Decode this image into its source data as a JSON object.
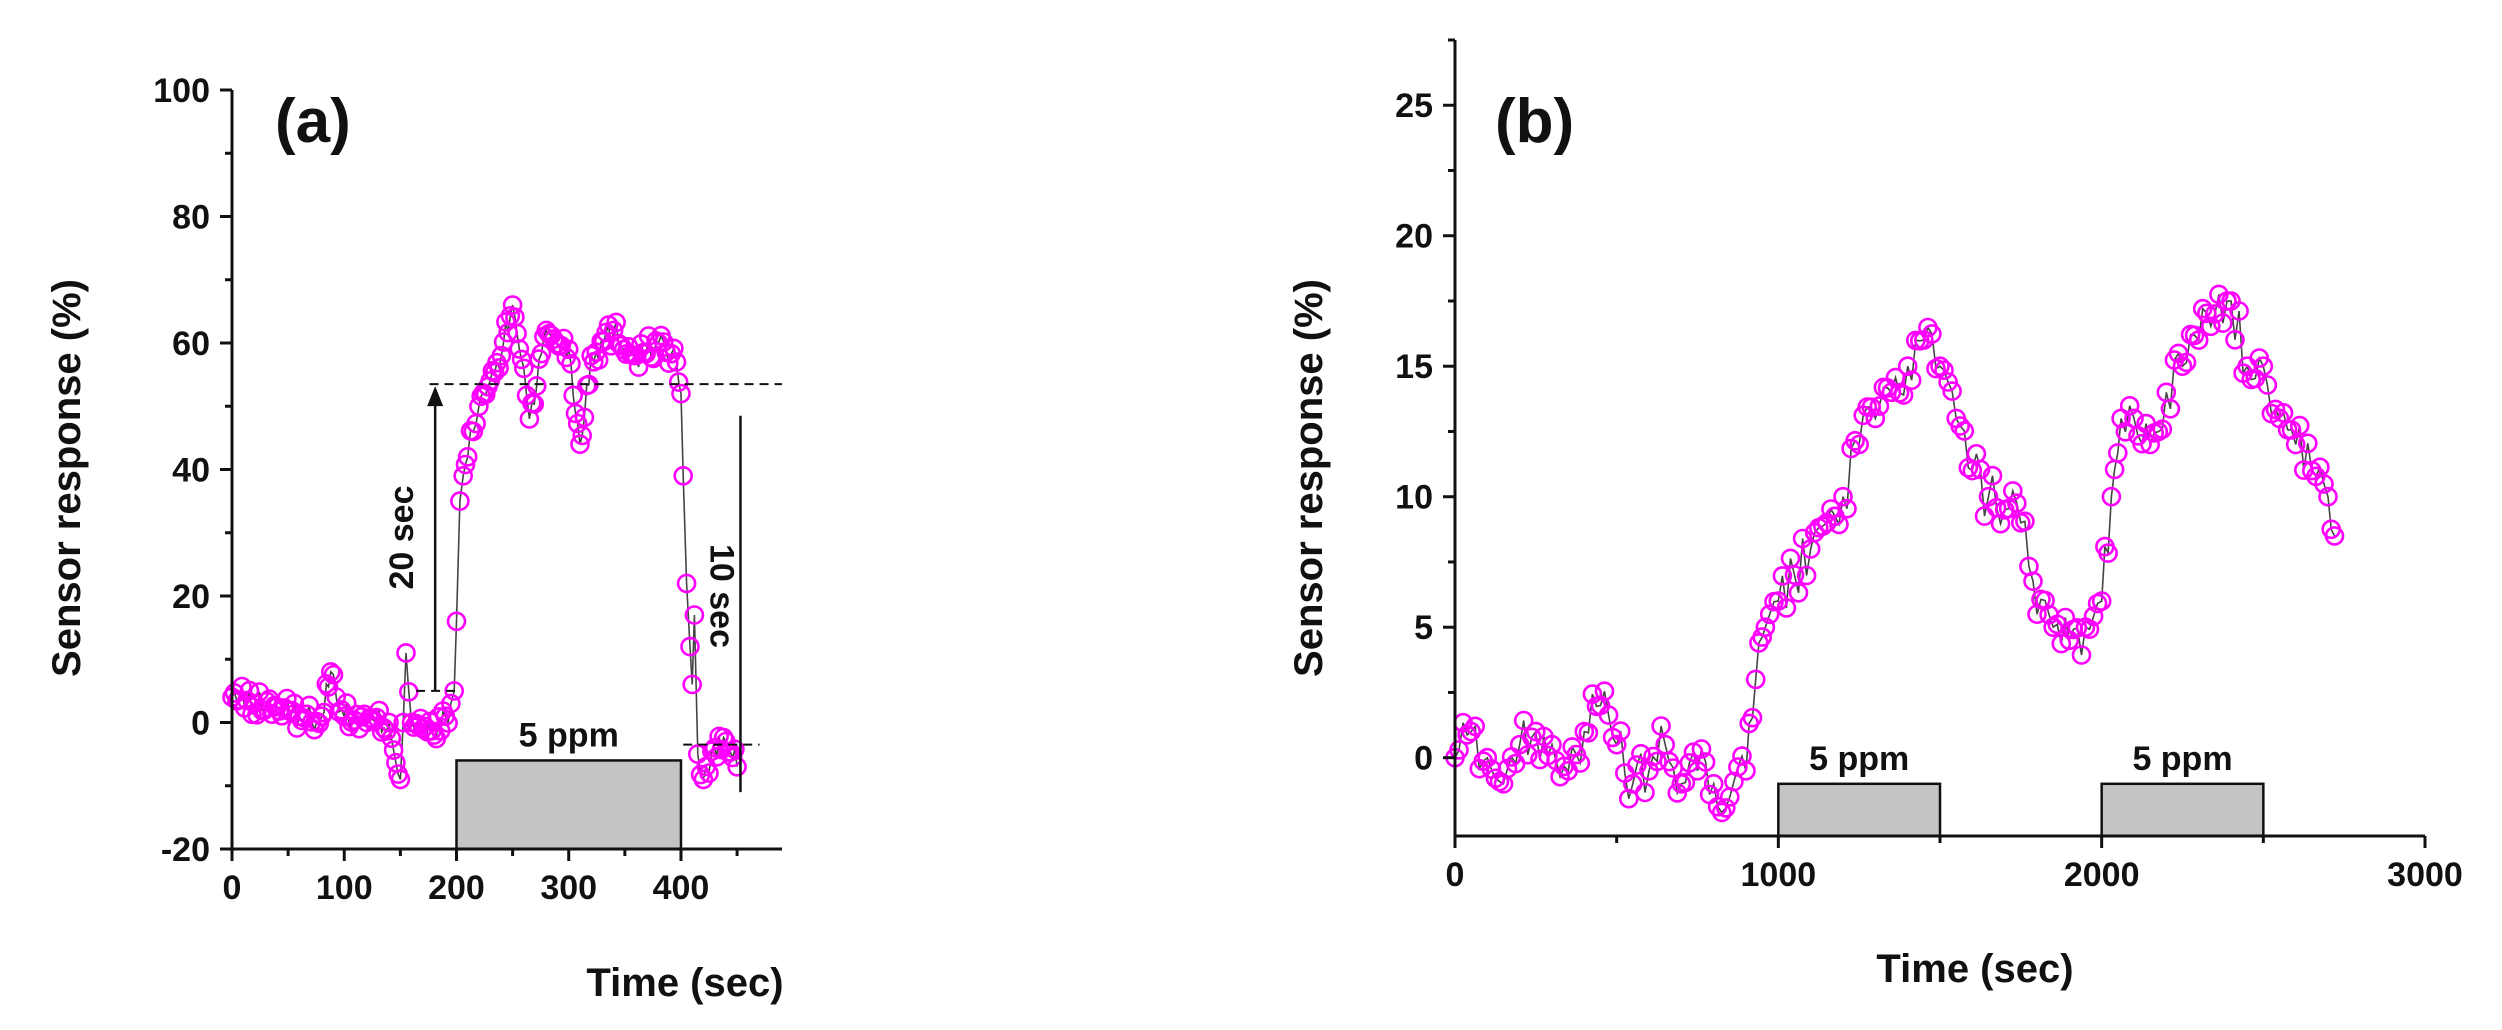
{
  "chart_data": [
    {
      "id": "a",
      "type": "scatter",
      "panel_label": "(a)",
      "xlabel": "Time (sec)",
      "ylabel": "Sensor response (%)",
      "xlim": [
        0,
        490
      ],
      "ylim": [
        -20,
        100
      ],
      "xticks": [
        "0",
        "100",
        "200",
        "300",
        "400"
      ],
      "yticks": [
        "-20",
        "0",
        "20",
        "40",
        "60",
        "80",
        "100"
      ],
      "marker_color": "#ff00ff",
      "gas_bars": [
        {
          "label": "5 ppm",
          "x0": 200,
          "x1": 400,
          "y0": -20,
          "y1": -6
        }
      ],
      "annotations": {
        "rise_label": "20 sec",
        "fall_label": "10 sec",
        "high_level": 53.5,
        "low_level_before": 5,
        "low_level_after": -3.5
      },
      "series": [
        {
          "name": "Sensor response",
          "x": [
            0,
            20,
            40,
            60,
            80,
            88,
            100,
            120,
            140,
            150,
            155,
            160,
            170,
            180,
            190,
            195,
            198,
            200,
            203,
            206,
            210,
            215,
            220,
            230,
            240,
            250,
            260,
            265,
            280,
            300,
            310,
            320,
            340,
            360,
            380,
            396,
            400,
            402,
            405,
            408,
            410,
            412,
            415,
            420,
            425,
            430,
            440,
            450
          ],
          "y": [
            4,
            3,
            2.5,
            1,
            1,
            8,
            1,
            0,
            0,
            -9,
            11,
            0,
            -1,
            -2,
            1,
            3,
            5,
            16,
            35,
            39,
            42,
            46,
            50,
            54,
            58,
            66,
            56,
            48,
            62,
            59,
            44,
            58,
            62,
            58,
            60,
            57,
            52,
            39,
            22,
            12,
            6,
            17,
            -5,
            -9,
            -8,
            -4,
            -3,
            -7
          ]
        }
      ]
    },
    {
      "id": "b",
      "type": "scatter",
      "panel_label": "(b)",
      "xlabel": "Time (sec)",
      "ylabel": "Sensor response (%)",
      "xlim": [
        0,
        3000
      ],
      "ylim": [
        -3,
        27.5
      ],
      "xticks": [
        "0",
        "1000",
        "2000",
        "3000"
      ],
      "yticks": [
        "0",
        "5",
        "10",
        "15",
        "20",
        "25"
      ],
      "marker_color": "#ff00ff",
      "gas_bars": [
        {
          "label": "5 ppm",
          "x0": 1000,
          "x1": 1500,
          "y0": -3,
          "y1": -1
        },
        {
          "label": "5 ppm",
          "x0": 2000,
          "x1": 2500,
          "y0": -3,
          "y1": -1
        }
      ],
      "series": [
        {
          "name": "Sensor response",
          "x": [
            0,
            50,
            100,
            150,
            200,
            250,
            300,
            350,
            400,
            450,
            500,
            550,
            600,
            650,
            700,
            750,
            800,
            850,
            900,
            930,
            960,
            1000,
            1050,
            1100,
            1150,
            1200,
            1250,
            1300,
            1350,
            1400,
            1450,
            1500,
            1550,
            1600,
            1650,
            1700,
            1750,
            1800,
            1850,
            1900,
            1950,
            2000,
            2030,
            2060,
            2100,
            2150,
            2200,
            2250,
            2300,
            2350,
            2400,
            2450,
            2500,
            2550,
            2600,
            2650,
            2700,
            2720
          ],
          "y": [
            0,
            1,
            0,
            -1,
            0.5,
            1,
            0.5,
            -0.5,
            1,
            2,
            0.5,
            -1,
            -0.5,
            0.5,
            -1,
            -0.5,
            -1,
            -1.5,
            -0.5,
            3,
            5,
            6,
            7,
            8,
            9,
            10,
            12,
            13,
            14,
            15,
            16,
            15,
            13,
            11,
            10,
            9.5,
            9,
            5.5,
            5,
            4.5,
            5,
            6,
            10,
            13,
            13,
            12,
            14,
            15,
            16,
            17,
            17.5,
            15,
            15,
            13,
            12,
            11,
            10,
            8.5
          ]
        }
      ]
    }
  ]
}
